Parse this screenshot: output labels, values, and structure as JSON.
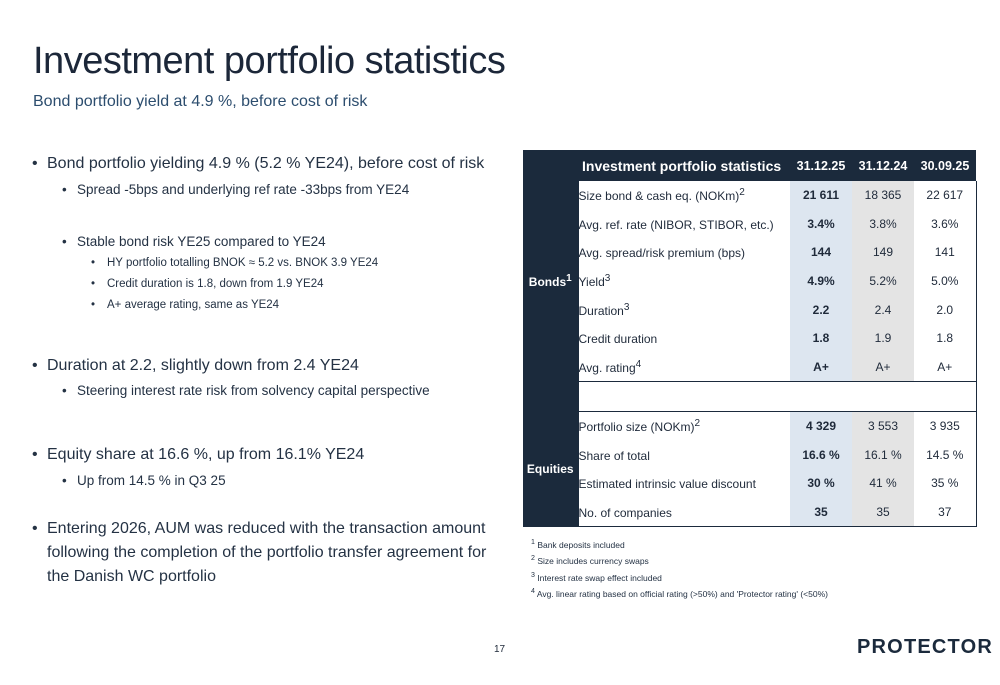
{
  "header": {
    "title": "Investment portfolio statistics",
    "subtitle": "Bond portfolio yield at 4.9 %, before cost of risk"
  },
  "bullets": [
    {
      "level": 1,
      "text": "Bond portfolio yielding 4.9 % (5.2 % YE24), before cost of risk"
    },
    {
      "level": 2,
      "text": "Spread -5bps and underlying ref rate -33bps from YE24"
    },
    {
      "level": 2,
      "text": "Stable bond risk YE25 compared to YE24"
    },
    {
      "level": 3,
      "text": "HY portfolio totalling BNOK ≈ 5.2 vs. BNOK 3.9 YE24"
    },
    {
      "level": 3,
      "text": "Credit duration is 1.8, down from 1.9 YE24"
    },
    {
      "level": 3,
      "text": "A+ average rating, same as YE24"
    },
    {
      "level": 1,
      "text": "Duration at 2.2, slightly down from 2.4 YE24"
    },
    {
      "level": 2,
      "text": "Steering interest rate risk from solvency capital perspective"
    },
    {
      "level": 1,
      "text": " Equity share at 16.6 %, up from 16.1% YE24"
    },
    {
      "level": 2,
      "text": "Up from 14.5 % in Q3 25"
    },
    {
      "level": 1,
      "text": "Entering 2026, AUM was reduced with the transaction amount following the completion of the portfolio transfer agreement for the Danish WC portfolio"
    }
  ],
  "table": {
    "header_label": "Investment portfolio statistics",
    "columns": [
      "31.12.25",
      "31.12.24",
      "30.09.25"
    ],
    "bonds_label": "Bonds",
    "bonds_sup": "1",
    "equities_label": "Equities",
    "bond_rows": [
      {
        "label": "Size bond & cash eq. (NOKm)",
        "sup": "2",
        "values": [
          "21 611",
          "18 365",
          "22 617"
        ]
      },
      {
        "label": "Avg. ref. rate (NIBOR, STIBOR, etc.)",
        "sup": "",
        "values": [
          "3.4%",
          "3.8%",
          "3.6%"
        ]
      },
      {
        "label": "Avg. spread/risk premium (bps)",
        "sup": "",
        "values": [
          "144",
          "149",
          "141"
        ]
      },
      {
        "label": "Yield",
        "sup": "3",
        "values": [
          "4.9%",
          "5.2%",
          "5.0%"
        ]
      },
      {
        "label": "Duration",
        "sup": "3",
        "values": [
          "2.2",
          "2.4",
          "2.0"
        ]
      },
      {
        "label": "Credit duration",
        "sup": "",
        "values": [
          "1.8",
          "1.9",
          "1.8"
        ]
      },
      {
        "label": "Avg. rating",
        "sup": "4",
        "values": [
          "A+",
          "A+",
          "A+"
        ]
      }
    ],
    "equity_rows": [
      {
        "label": "Portfolio size (NOKm)",
        "sup": "2",
        "values": [
          "4 329",
          "3 553",
          "3 935"
        ]
      },
      {
        "label": "Share of total",
        "sup": "",
        "values": [
          "16.6 %",
          "16.1 %",
          "14.5 %"
        ]
      },
      {
        "label": "Estimated intrinsic value discount",
        "sup": "",
        "values": [
          "30 %",
          "41 %",
          "35 %"
        ]
      },
      {
        "label": "No. of companies",
        "sup": "",
        "values": [
          "35",
          "35",
          "37"
        ]
      }
    ]
  },
  "footnotes": [
    {
      "num": "1",
      "text": "Bank deposits included"
    },
    {
      "num": "2",
      "text": "Size includes currency swaps"
    },
    {
      "num": "3",
      "text": "Interest rate swap effect included"
    },
    {
      "num": "4",
      "text": "Avg. linear rating based on official rating (>50%) and 'Protector rating' (<50%)"
    }
  ],
  "footer": {
    "page_number": "17",
    "logo_text": "PROTECTOR"
  },
  "colors": {
    "navy": "#1b2a3c",
    "col_current": "#dde6f0",
    "col_prior": "#e4e4e4",
    "logo_accent": "#e07a1a"
  }
}
